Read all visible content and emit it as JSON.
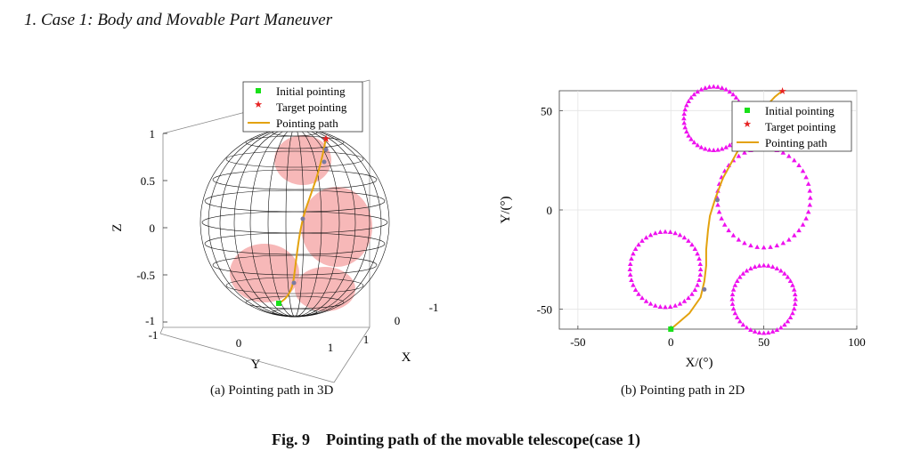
{
  "section_heading": "1. Case 1: Body and Movable Part Maneuver",
  "figure": {
    "number": "Fig. 9",
    "title": "Pointing path of the movable telescope(case 1)"
  },
  "legend": {
    "initial": "Initial pointing",
    "target": "Target pointing",
    "path": "Pointing path"
  },
  "colors": {
    "path": "#e3a20e",
    "initial": "#19e019",
    "target": "#e62222",
    "cone_fill": "#f4a0a0",
    "triangles": "#ee11ee",
    "waypoint": "#7a7aa0"
  },
  "chart_data": [
    {
      "type": "line",
      "view": "3d",
      "caption": "(a) Pointing path in 3D",
      "xlabel": "X",
      "ylabel": "Y",
      "zlabel": "Z",
      "x_ticks": [
        "-1",
        "0",
        "1"
      ],
      "y_ticks": [
        "-1",
        "0",
        "1"
      ],
      "z_ticks": [
        "-1",
        "-0.5",
        "0",
        "0.5",
        "1"
      ],
      "xlim": [
        -1,
        1
      ],
      "ylim": [
        -1,
        1
      ],
      "zlim": [
        -1,
        1
      ],
      "grid": true,
      "legend_position": "top"
    },
    {
      "type": "scatter",
      "view": "2d",
      "caption": "(b) Pointing path in 2D",
      "xlabel": "X/(°)",
      "ylabel": "Y/(°)",
      "xlim": [
        -60,
        100
      ],
      "ylim": [
        -60,
        60
      ],
      "x_ticks": [
        -50,
        0,
        50,
        100
      ],
      "y_ticks": [
        -50,
        0,
        50
      ],
      "grid": true,
      "legend_position": "top-right",
      "initial_point": [
        0,
        -60
      ],
      "target_point": [
        60,
        60
      ],
      "path": [
        [
          0,
          -60
        ],
        [
          10,
          -52
        ],
        [
          16,
          -44
        ],
        [
          18,
          -36
        ],
        [
          19,
          -28
        ],
        [
          19,
          -20
        ],
        [
          20,
          -10
        ],
        [
          21,
          -3
        ],
        [
          24,
          6
        ],
        [
          28,
          16
        ],
        [
          35,
          28
        ],
        [
          41,
          38
        ],
        [
          46,
          45
        ],
        [
          51,
          52
        ],
        [
          56,
          57
        ],
        [
          60,
          60
        ]
      ],
      "waypoints": [
        [
          18,
          -40
        ],
        [
          25,
          5
        ]
      ],
      "circles": [
        {
          "center": [
            23,
            46
          ],
          "radius": 16
        },
        {
          "center": [
            50,
            6
          ],
          "radius": 25
        },
        {
          "center": [
            -3,
            -30
          ],
          "radius": 19
        },
        {
          "center": [
            50,
            -45
          ],
          "radius": 17
        }
      ]
    }
  ]
}
